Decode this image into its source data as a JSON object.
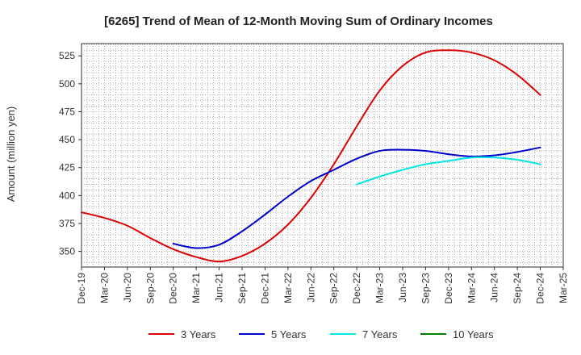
{
  "chart_data": {
    "type": "line",
    "title": "[6265]  Trend of Mean of 12-Month Moving Sum of Ordinary Incomes",
    "xlabel": "",
    "ylabel": "Amount (million yen)",
    "ylim": [
      336,
      536
    ],
    "yticks": [
      350,
      375,
      400,
      425,
      450,
      475,
      500,
      525
    ],
    "grid": true,
    "legend_position": "bottom",
    "categories": [
      "Dec-19",
      "Mar-20",
      "Jun-20",
      "Sep-20",
      "Dec-20",
      "Mar-21",
      "Jun-21",
      "Sep-21",
      "Dec-21",
      "Mar-22",
      "Jun-22",
      "Sep-22",
      "Dec-22",
      "Mar-23",
      "Jun-23",
      "Sep-23",
      "Dec-23",
      "Mar-24",
      "Jun-24",
      "Sep-24",
      "Dec-24",
      "Mar-25"
    ],
    "series": [
      {
        "name": "3 Years",
        "color": "#dd0000",
        "values": [
          385,
          380,
          373,
          362,
          352,
          345,
          341,
          346,
          357,
          374,
          398,
          428,
          462,
          494,
          516,
          528,
          530,
          528,
          521,
          508,
          490,
          null
        ]
      },
      {
        "name": "5 Years",
        "color": "#0000cc",
        "values": [
          null,
          null,
          null,
          null,
          357,
          353,
          356,
          368,
          383,
          399,
          413,
          423,
          433,
          440,
          441,
          440,
          437,
          435,
          436,
          439,
          443,
          null
        ]
      },
      {
        "name": "7 Years",
        "color": "#00e5e5",
        "values": [
          null,
          null,
          null,
          null,
          null,
          null,
          null,
          null,
          null,
          null,
          null,
          null,
          410,
          417,
          423,
          428,
          431,
          434,
          434,
          432,
          428,
          null
        ]
      },
      {
        "name": "10 Years",
        "color": "#008000",
        "values": [
          null,
          null,
          null,
          null,
          null,
          null,
          null,
          null,
          null,
          null,
          null,
          null,
          null,
          null,
          null,
          null,
          null,
          null,
          null,
          null,
          null,
          null
        ]
      }
    ]
  }
}
